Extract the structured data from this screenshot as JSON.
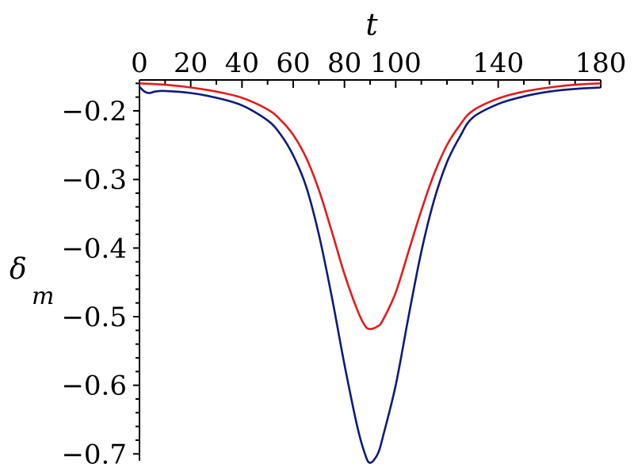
{
  "chart_data": {
    "type": "line",
    "title": "",
    "xlabel": "t",
    "ylabel": "δ",
    "ylabel_subscript": "m",
    "xlim": [
      0,
      180
    ],
    "ylim": [
      -0.71,
      -0.155
    ],
    "x_ticks": [
      0,
      20,
      40,
      60,
      80,
      100,
      140,
      180
    ],
    "x_tick_labels": [
      "0",
      "20",
      "40",
      "60",
      "80",
      "100",
      "140",
      "180"
    ],
    "x_minor_ticks": [
      10,
      30,
      50,
      70,
      90,
      110,
      120,
      130,
      150,
      160,
      170
    ],
    "y_ticks": [
      -0.2,
      -0.3,
      -0.4,
      -0.5,
      -0.6,
      -0.7
    ],
    "y_tick_labels": [
      "−0.2",
      "−0.3",
      "−0.4",
      "−0.5",
      "−0.6",
      "−0.7"
    ],
    "grid": false,
    "legend": "none",
    "series": [
      {
        "color": "#e41a1c",
        "x": [
          0,
          10,
          20,
          30,
          40,
          50,
          55,
          60,
          65,
          70,
          75,
          80,
          85,
          88,
          90,
          93,
          95,
          100,
          105,
          110,
          115,
          120,
          125,
          130,
          140,
          150,
          160,
          170,
          180
        ],
        "values": [
          -0.16,
          -0.162,
          -0.166,
          -0.172,
          -0.181,
          -0.198,
          -0.213,
          -0.235,
          -0.268,
          -0.315,
          -0.375,
          -0.438,
          -0.49,
          -0.513,
          -0.518,
          -0.514,
          -0.505,
          -0.465,
          -0.405,
          -0.345,
          -0.292,
          -0.25,
          -0.221,
          -0.2,
          -0.182,
          -0.172,
          -0.166,
          -0.162,
          -0.16
        ]
      },
      {
        "color": "#0d1a7a",
        "x": [
          0,
          2,
          4,
          6,
          10,
          20,
          30,
          40,
          50,
          55,
          60,
          65,
          70,
          75,
          80,
          85,
          88,
          90,
          93,
          95,
          100,
          105,
          110,
          115,
          120,
          125,
          130,
          140,
          150,
          160,
          170,
          180
        ],
        "values": [
          -0.165,
          -0.172,
          -0.174,
          -0.172,
          -0.171,
          -0.174,
          -0.181,
          -0.192,
          -0.214,
          -0.234,
          -0.265,
          -0.31,
          -0.38,
          -0.47,
          -0.57,
          -0.66,
          -0.7,
          -0.713,
          -0.7,
          -0.675,
          -0.6,
          -0.5,
          -0.405,
          -0.33,
          -0.275,
          -0.238,
          -0.21,
          -0.19,
          -0.179,
          -0.172,
          -0.168,
          -0.166
        ]
      }
    ]
  }
}
